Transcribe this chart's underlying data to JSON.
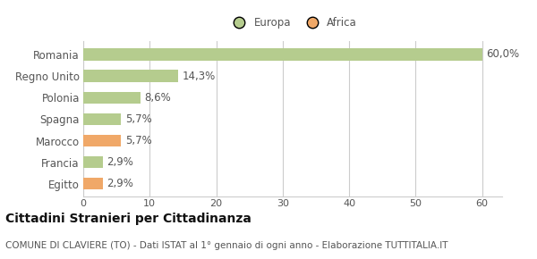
{
  "categories": [
    "Romania",
    "Regno Unito",
    "Polonia",
    "Spagna",
    "Marocco",
    "Francia",
    "Egitto"
  ],
  "values": [
    60.0,
    14.3,
    8.6,
    5.7,
    5.7,
    2.9,
    2.9
  ],
  "labels": [
    "60,0%",
    "14,3%",
    "8,6%",
    "5,7%",
    "5,7%",
    "2,9%",
    "2,9%"
  ],
  "colors": [
    "#b5cc8e",
    "#b5cc8e",
    "#b5cc8e",
    "#b5cc8e",
    "#f0a868",
    "#b5cc8e",
    "#f0a868"
  ],
  "legend_labels": [
    "Europa",
    "Africa"
  ],
  "legend_colors": [
    "#b5cc8e",
    "#f0a868"
  ],
  "xlim": [
    0,
    63
  ],
  "xticks": [
    0,
    10,
    20,
    30,
    40,
    50,
    60
  ],
  "title_main": "Cittadini Stranieri per Cittadinanza",
  "title_sub": "COMUNE DI CLAVIERE (TO) - Dati ISTAT al 1° gennaio di ogni anno - Elaborazione TUTTITALIA.IT",
  "bg_color": "#ffffff",
  "grid_color": "#cccccc",
  "bar_height": 0.55,
  "label_fontsize": 8.5,
  "tick_fontsize": 8,
  "title_fontsize": 10,
  "subtitle_fontsize": 7.5,
  "label_color": "#555555",
  "title_color": "#111111",
  "subtitle_color": "#555555"
}
